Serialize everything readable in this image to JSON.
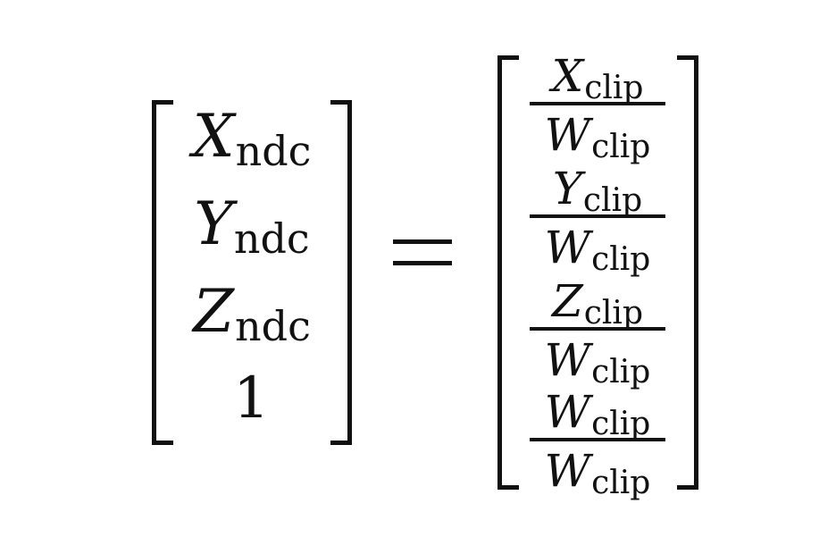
{
  "lhs": {
    "rows": [
      {
        "var": "X",
        "sub": "ndc"
      },
      {
        "var": "Y",
        "sub": "ndc"
      },
      {
        "var": "Z",
        "sub": "ndc"
      },
      {
        "var": "1",
        "sub": ""
      }
    ]
  },
  "equals": "=",
  "rhs": {
    "rows": [
      {
        "num_var": "X",
        "num_sub": "clip",
        "den_var": "W",
        "den_sub": "clip"
      },
      {
        "num_var": "Y",
        "num_sub": "clip",
        "den_var": "W",
        "den_sub": "clip"
      },
      {
        "num_var": "Z",
        "num_sub": "clip",
        "den_var": "W",
        "den_sub": "clip"
      },
      {
        "num_var": "W",
        "num_sub": "clip",
        "den_var": "W",
        "den_sub": "clip"
      }
    ]
  }
}
